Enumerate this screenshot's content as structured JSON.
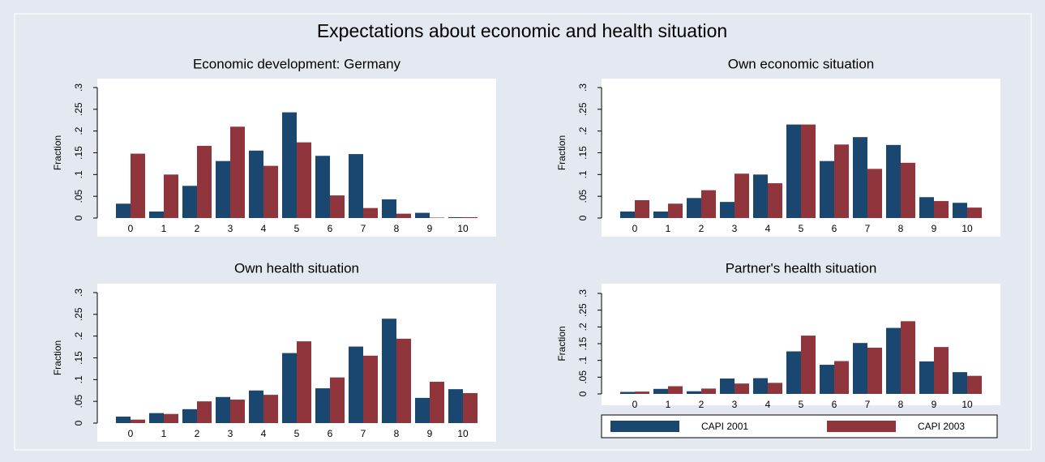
{
  "title": "Expectations about economic and health situation",
  "chart_data": [
    {
      "type": "bar",
      "title": "Economic development: Germany",
      "y_label": "Fraction",
      "categories": [
        0,
        1,
        2,
        3,
        4,
        5,
        6,
        7,
        8,
        9,
        10
      ],
      "series": [
        {
          "color": "#1a476f",
          "values": [
            0.033,
            0.015,
            0.074,
            0.131,
            0.155,
            0.243,
            0.143,
            0.147,
            0.043,
            0.012,
            0.002
          ]
        },
        {
          "color": "#90353b",
          "values": [
            0.148,
            0.1,
            0.166,
            0.21,
            0.12,
            0.174,
            0.052,
            0.023,
            0.01,
            0.001,
            0.002
          ]
        }
      ],
      "ylim": [
        0,
        0.3
      ],
      "yticks": [
        0,
        {
          "value": 0.05,
          "label": ".05"
        },
        {
          "value": 0.1,
          "label": ".1"
        },
        {
          "value": 0.15,
          "label": ".15"
        },
        {
          "value": 0.2,
          "label": ".2"
        },
        {
          "value": 0.25,
          "label": ".25"
        },
        {
          "value": 0.3,
          "label": ".3"
        }
      ]
    },
    {
      "type": "bar",
      "title": "Own economic situation",
      "y_label": "Fraction",
      "categories": [
        0,
        1,
        2,
        3,
        4,
        5,
        6,
        7,
        8,
        9,
        10
      ],
      "series": [
        {
          "color": "#1a476f",
          "values": [
            0.015,
            0.015,
            0.046,
            0.037,
            0.1,
            0.215,
            0.131,
            0.186,
            0.168,
            0.048,
            0.035
          ]
        },
        {
          "color": "#90353b",
          "values": [
            0.041,
            0.033,
            0.064,
            0.102,
            0.08,
            0.215,
            0.169,
            0.113,
            0.127,
            0.039,
            0.024
          ]
        }
      ],
      "ylim": [
        0,
        0.3
      ],
      "yticks": [
        0,
        {
          "value": 0.05,
          "label": ".05"
        },
        {
          "value": 0.1,
          "label": ".1"
        },
        {
          "value": 0.15,
          "label": ".15"
        },
        {
          "value": 0.2,
          "label": ".2"
        },
        {
          "value": 0.25,
          "label": ".25"
        },
        {
          "value": 0.3,
          "label": ".3"
        }
      ]
    },
    {
      "type": "bar",
      "title": "Own health situation",
      "y_label": "Fraction",
      "categories": [
        0,
        1,
        2,
        3,
        4,
        5,
        6,
        7,
        8,
        9,
        10
      ],
      "series": [
        {
          "color": "#1a476f",
          "values": [
            0.015,
            0.023,
            0.032,
            0.06,
            0.075,
            0.161,
            0.08,
            0.176,
            0.24,
            0.058,
            0.078
          ]
        },
        {
          "color": "#90353b",
          "values": [
            0.008,
            0.021,
            0.05,
            0.054,
            0.065,
            0.188,
            0.105,
            0.155,
            0.194,
            0.095,
            0.069
          ]
        }
      ],
      "ylim": [
        0,
        0.3
      ],
      "yticks": [
        0,
        {
          "value": 0.05,
          "label": ".05"
        },
        {
          "value": 0.1,
          "label": ".1"
        },
        {
          "value": 0.15,
          "label": ".15"
        },
        {
          "value": 0.2,
          "label": ".2"
        },
        {
          "value": 0.25,
          "label": ".25"
        },
        {
          "value": 0.3,
          "label": ".3"
        }
      ]
    },
    {
      "type": "bar",
      "title": "Partner's health situation",
      "y_label": "Fraction",
      "categories": [
        0,
        1,
        2,
        3,
        4,
        5,
        6,
        7,
        8,
        9,
        10
      ],
      "series": [
        {
          "name": "CAPI 2001",
          "color": "#1a476f",
          "values": [
            0.006,
            0.015,
            0.008,
            0.046,
            0.047,
            0.127,
            0.087,
            0.152,
            0.197,
            0.097,
            0.065
          ]
        },
        {
          "name": "CAPI 2003",
          "color": "#90353b",
          "values": [
            0.007,
            0.023,
            0.016,
            0.031,
            0.033,
            0.174,
            0.098,
            0.138,
            0.217,
            0.14,
            0.054
          ]
        }
      ],
      "ylim": [
        0,
        0.3
      ],
      "yticks": [
        0,
        {
          "value": 0.05,
          "label": ".05"
        },
        {
          "value": 0.1,
          "label": ".1"
        },
        {
          "value": 0.15,
          "label": ".15"
        },
        {
          "value": 0.2,
          "label": ".2"
        },
        {
          "value": 0.25,
          "label": ".25"
        },
        {
          "value": 0.3,
          "label": ".3"
        }
      ]
    }
  ]
}
